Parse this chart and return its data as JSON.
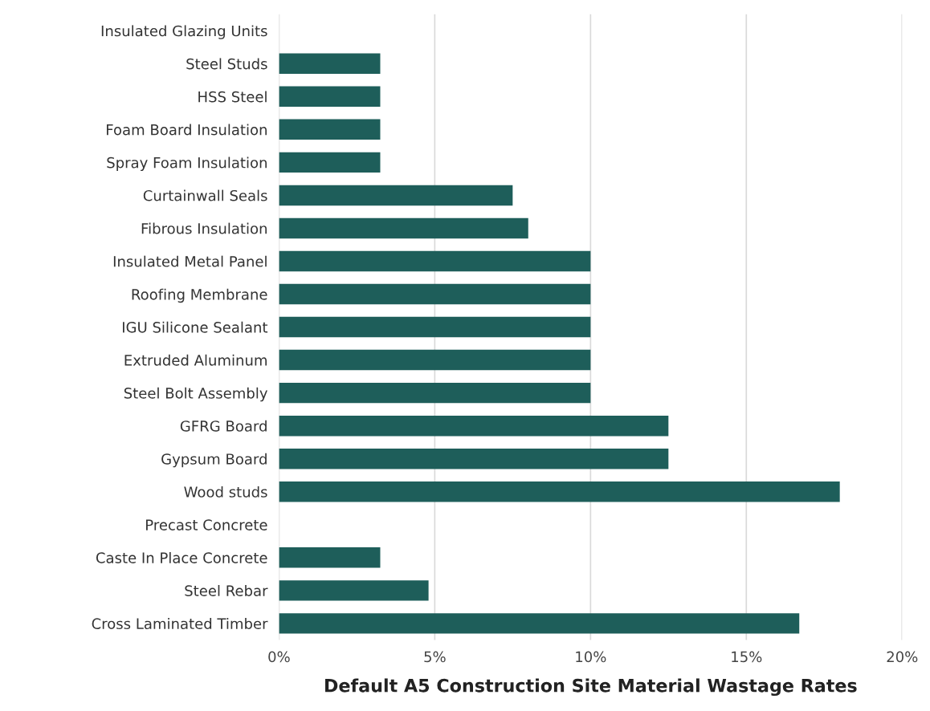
{
  "chart_data": {
    "type": "bar",
    "orientation": "horizontal",
    "xlabel": "Default A5 Construction Site Material Wastage Rates",
    "categories": [
      "Insulated Glazing Units",
      "Steel Studs",
      "HSS Steel",
      "Foam Board Insulation",
      "Spray Foam Insulation",
      "Curtainwall Seals",
      "Fibrous Insulation",
      "Insulated Metal Panel",
      "Roofing Membrane",
      "IGU Silicone Sealant",
      "Extruded Aluminum",
      "Steel Bolt Assembly",
      "GFRG Board",
      "Gypsum Board",
      "Wood studs",
      "Precast Concrete",
      "Caste In Place Concrete",
      "Steel Rebar",
      "Cross Laminated Timber"
    ],
    "values": [
      0,
      3.25,
      3.25,
      3.25,
      3.25,
      7.5,
      8,
      10,
      10,
      10,
      10,
      10,
      12.5,
      12.5,
      18,
      0,
      3.25,
      4.8,
      16.7
    ],
    "color": "#1e5e5a",
    "xlim": [
      0,
      20
    ],
    "xticks": [
      {
        "value": 0,
        "label": "0%"
      },
      {
        "value": 5,
        "label": "5%"
      },
      {
        "value": 10,
        "label": "10%"
      },
      {
        "value": 15,
        "label": "15%"
      },
      {
        "value": 20,
        "label": "20%"
      }
    ],
    "grid": "x"
  }
}
